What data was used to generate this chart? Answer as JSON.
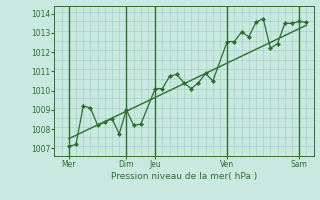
{
  "title": "",
  "xlabel": "Pression niveau de la mer( hPa )",
  "bg_color": "#c8e8e0",
  "plot_bg_color": "#c8e8e0",
  "line_color": "#2d6e2d",
  "marker_color": "#2d6e2d",
  "grid_color": "#a0ccc0",
  "vline_color": "#2d6e2d",
  "tick_label_color": "#2d6e2d",
  "xlabel_color": "#2d6e2d",
  "ylim": [
    1006.6,
    1014.4
  ],
  "yticks": [
    1007,
    1008,
    1009,
    1010,
    1011,
    1012,
    1013,
    1014
  ],
  "xlim": [
    0,
    18
  ],
  "xtick_positions": [
    1,
    5,
    7,
    12,
    17
  ],
  "xtick_labels": [
    "Mer",
    "Dim",
    "Jeu",
    "Ven",
    "Sam"
  ],
  "vline_positions": [
    1,
    5,
    7,
    12,
    17
  ],
  "wavy_x": [
    1.0,
    1.5,
    2.0,
    2.5,
    3.0,
    3.5,
    4.0,
    4.5,
    5.0,
    5.5,
    6.0,
    7.0,
    7.5,
    8.0,
    8.5,
    9.0,
    9.5,
    10.0,
    10.5,
    11.0,
    12.0,
    12.5,
    13.0,
    13.5,
    14.0,
    14.5,
    15.0,
    15.5,
    16.0,
    16.5,
    17.0,
    17.5
  ],
  "wavy_y": [
    1007.1,
    1007.2,
    1009.2,
    1009.1,
    1008.2,
    1008.35,
    1008.55,
    1007.75,
    1009.0,
    1008.2,
    1008.25,
    1010.1,
    1010.1,
    1010.75,
    1010.85,
    1010.4,
    1010.1,
    1010.4,
    1010.9,
    1010.5,
    1012.55,
    1012.55,
    1013.05,
    1012.8,
    1013.55,
    1013.75,
    1012.2,
    1012.45,
    1013.5,
    1013.5,
    1013.6,
    1013.55
  ],
  "trend_x": [
    1.0,
    17.5
  ],
  "trend_y": [
    1007.5,
    1013.4
  ]
}
